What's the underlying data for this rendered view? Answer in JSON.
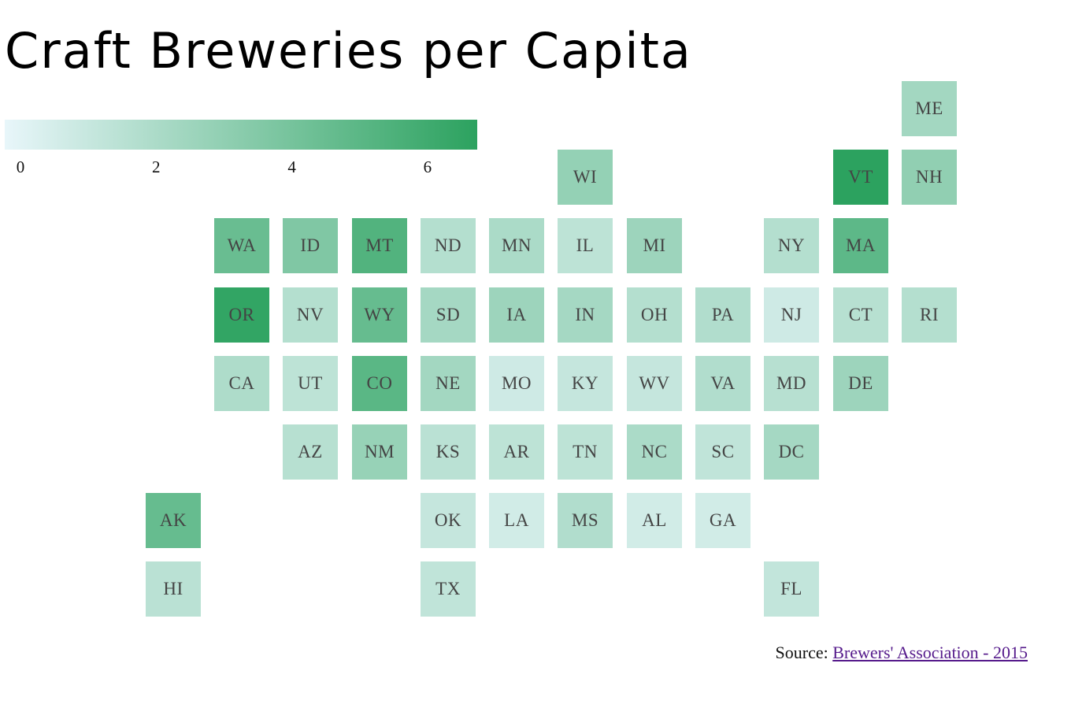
{
  "title": "Craft Breweries per Capita",
  "legend": {
    "min": 0,
    "max": 6.5,
    "ticks": [
      "0",
      "2",
      "4",
      "6"
    ],
    "tick_values": [
      0,
      2,
      4,
      6
    ],
    "color_low": "#e8f6fa",
    "color_high": "#2ca25f"
  },
  "source": {
    "prefix": "Source: ",
    "link_text": "Brewers' Association - 2015"
  },
  "states": [
    {
      "abbr": "ME",
      "col": 13,
      "row": 0,
      "value": 2.4
    },
    {
      "abbr": "WI",
      "col": 8,
      "row": 1,
      "value": 2.9
    },
    {
      "abbr": "VT",
      "col": 12,
      "row": 1,
      "value": 6.5
    },
    {
      "abbr": "NH",
      "col": 13,
      "row": 1,
      "value": 3.0
    },
    {
      "abbr": "WA",
      "col": 3,
      "row": 2,
      "value": 4.4
    },
    {
      "abbr": "ID",
      "col": 4,
      "row": 2,
      "value": 3.6
    },
    {
      "abbr": "MT",
      "col": 5,
      "row": 2,
      "value": 5.2
    },
    {
      "abbr": "ND",
      "col": 6,
      "row": 2,
      "value": 1.8
    },
    {
      "abbr": "MN",
      "col": 7,
      "row": 2,
      "value": 2.1
    },
    {
      "abbr": "IL",
      "col": 8,
      "row": 2,
      "value": 1.5
    },
    {
      "abbr": "MI",
      "col": 9,
      "row": 2,
      "value": 2.6
    },
    {
      "abbr": "NY",
      "col": 11,
      "row": 2,
      "value": 1.8
    },
    {
      "abbr": "MA",
      "col": 12,
      "row": 2,
      "value": 4.8
    },
    {
      "abbr": "OR",
      "col": 3,
      "row": 3,
      "value": 6.3
    },
    {
      "abbr": "NV",
      "col": 4,
      "row": 3,
      "value": 1.8
    },
    {
      "abbr": "WY",
      "col": 5,
      "row": 3,
      "value": 4.5
    },
    {
      "abbr": "SD",
      "col": 6,
      "row": 3,
      "value": 2.3
    },
    {
      "abbr": "IA",
      "col": 7,
      "row": 3,
      "value": 2.6
    },
    {
      "abbr": "IN",
      "col": 8,
      "row": 3,
      "value": 2.3
    },
    {
      "abbr": "OH",
      "col": 9,
      "row": 3,
      "value": 1.8
    },
    {
      "abbr": "PA",
      "col": 10,
      "row": 3,
      "value": 1.9
    },
    {
      "abbr": "NJ",
      "col": 11,
      "row": 3,
      "value": 0.9
    },
    {
      "abbr": "CT",
      "col": 12,
      "row": 3,
      "value": 1.7
    },
    {
      "abbr": "RI",
      "col": 13,
      "row": 3,
      "value": 1.8
    },
    {
      "abbr": "CA",
      "col": 3,
      "row": 4,
      "value": 2.0
    },
    {
      "abbr": "UT",
      "col": 4,
      "row": 4,
      "value": 1.5
    },
    {
      "abbr": "CO",
      "col": 5,
      "row": 4,
      "value": 4.9
    },
    {
      "abbr": "NE",
      "col": 6,
      "row": 4,
      "value": 2.4
    },
    {
      "abbr": "MO",
      "col": 7,
      "row": 4,
      "value": 0.9
    },
    {
      "abbr": "KY",
      "col": 8,
      "row": 4,
      "value": 1.2
    },
    {
      "abbr": "WV",
      "col": 9,
      "row": 4,
      "value": 1.2
    },
    {
      "abbr": "VA",
      "col": 10,
      "row": 4,
      "value": 1.9
    },
    {
      "abbr": "MD",
      "col": 11,
      "row": 4,
      "value": 1.7
    },
    {
      "abbr": "DE",
      "col": 12,
      "row": 4,
      "value": 2.6
    },
    {
      "abbr": "AZ",
      "col": 4,
      "row": 5,
      "value": 1.7
    },
    {
      "abbr": "NM",
      "col": 5,
      "row": 5,
      "value": 2.8
    },
    {
      "abbr": "KS",
      "col": 6,
      "row": 5,
      "value": 1.6
    },
    {
      "abbr": "AR",
      "col": 7,
      "row": 5,
      "value": 1.5
    },
    {
      "abbr": "TN",
      "col": 8,
      "row": 5,
      "value": 1.5
    },
    {
      "abbr": "NC",
      "col": 9,
      "row": 5,
      "value": 2.1
    },
    {
      "abbr": "SC",
      "col": 10,
      "row": 5,
      "value": 1.4
    },
    {
      "abbr": "DC",
      "col": 11,
      "row": 5,
      "value": 2.3
    },
    {
      "abbr": "AK",
      "col": 2,
      "row": 6,
      "value": 4.5
    },
    {
      "abbr": "OK",
      "col": 6,
      "row": 6,
      "value": 1.2
    },
    {
      "abbr": "LA",
      "col": 7,
      "row": 6,
      "value": 0.8
    },
    {
      "abbr": "MS",
      "col": 8,
      "row": 6,
      "value": 1.9
    },
    {
      "abbr": "AL",
      "col": 9,
      "row": 6,
      "value": 0.8
    },
    {
      "abbr": "GA",
      "col": 10,
      "row": 6,
      "value": 0.8
    },
    {
      "abbr": "HI",
      "col": 2,
      "row": 7,
      "value": 1.6
    },
    {
      "abbr": "TX",
      "col": 6,
      "row": 7,
      "value": 1.4
    },
    {
      "abbr": "FL",
      "col": 11,
      "row": 7,
      "value": 1.3
    }
  ]
}
